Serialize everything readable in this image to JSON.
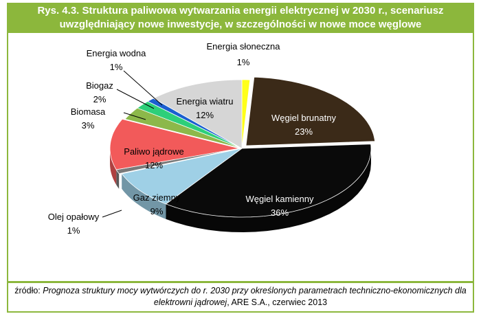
{
  "figure": {
    "title_line1": "Rys. 4.3. Struktura paliwowa wytwarzania energii elektrycznej w 2030 r., scenariusz",
    "title_line2": "uwzględniający nowe inwestycje, w szczególności w nowe moce węglowe",
    "source_prefix": "źródło: ",
    "source_line1": "Prognoza struktury mocy wytwórczych do r. 2030 przy określonych parametrach techniczno-ekonomicznych dla",
    "source_line2a": "elektrowni jądrowej",
    "source_line2b": ", ARE S.A., czerwiec 2013"
  },
  "colors": {
    "accent": "#8cb73c"
  },
  "chart_data": {
    "type": "pie",
    "title": "Rys. 4.3. Struktura paliwowa wytwarzania energii elektrycznej w 2030 r., scenariusz uwzględniający nowe inwestycje, w szczególności w nowe moce węglowe",
    "unit": "%",
    "slices": [
      {
        "name": "Energia słoneczna",
        "value": 1,
        "label": "1%",
        "color": "#ffff1a"
      },
      {
        "name": "Węgiel brunatny",
        "value": 23,
        "label": "23%",
        "color": "#3b2a18"
      },
      {
        "name": "Węgiel kamienny",
        "value": 36,
        "label": "36%",
        "color": "#0a0a0a"
      },
      {
        "name": "Gaz ziemny",
        "value": 9,
        "label": "9%",
        "color": "#9fd0e6"
      },
      {
        "name": "Olej opałowy",
        "value": 1,
        "label": "1%",
        "color": "#7a7a7a"
      },
      {
        "name": "Paliwo jądrowe",
        "value": 12,
        "label": "12%",
        "color": "#f25a5a"
      },
      {
        "name": "Biomasa",
        "value": 3,
        "label": "3%",
        "color": "#8cb84a"
      },
      {
        "name": "Biogaz",
        "value": 2,
        "label": "2%",
        "color": "#2dcf7a"
      },
      {
        "name": "Energia wodna",
        "value": 1,
        "label": "1%",
        "color": "#1a5fd0"
      },
      {
        "name": "Energia wiatru",
        "value": 12,
        "label": "12%",
        "color": "#d6d6d6"
      }
    ]
  }
}
